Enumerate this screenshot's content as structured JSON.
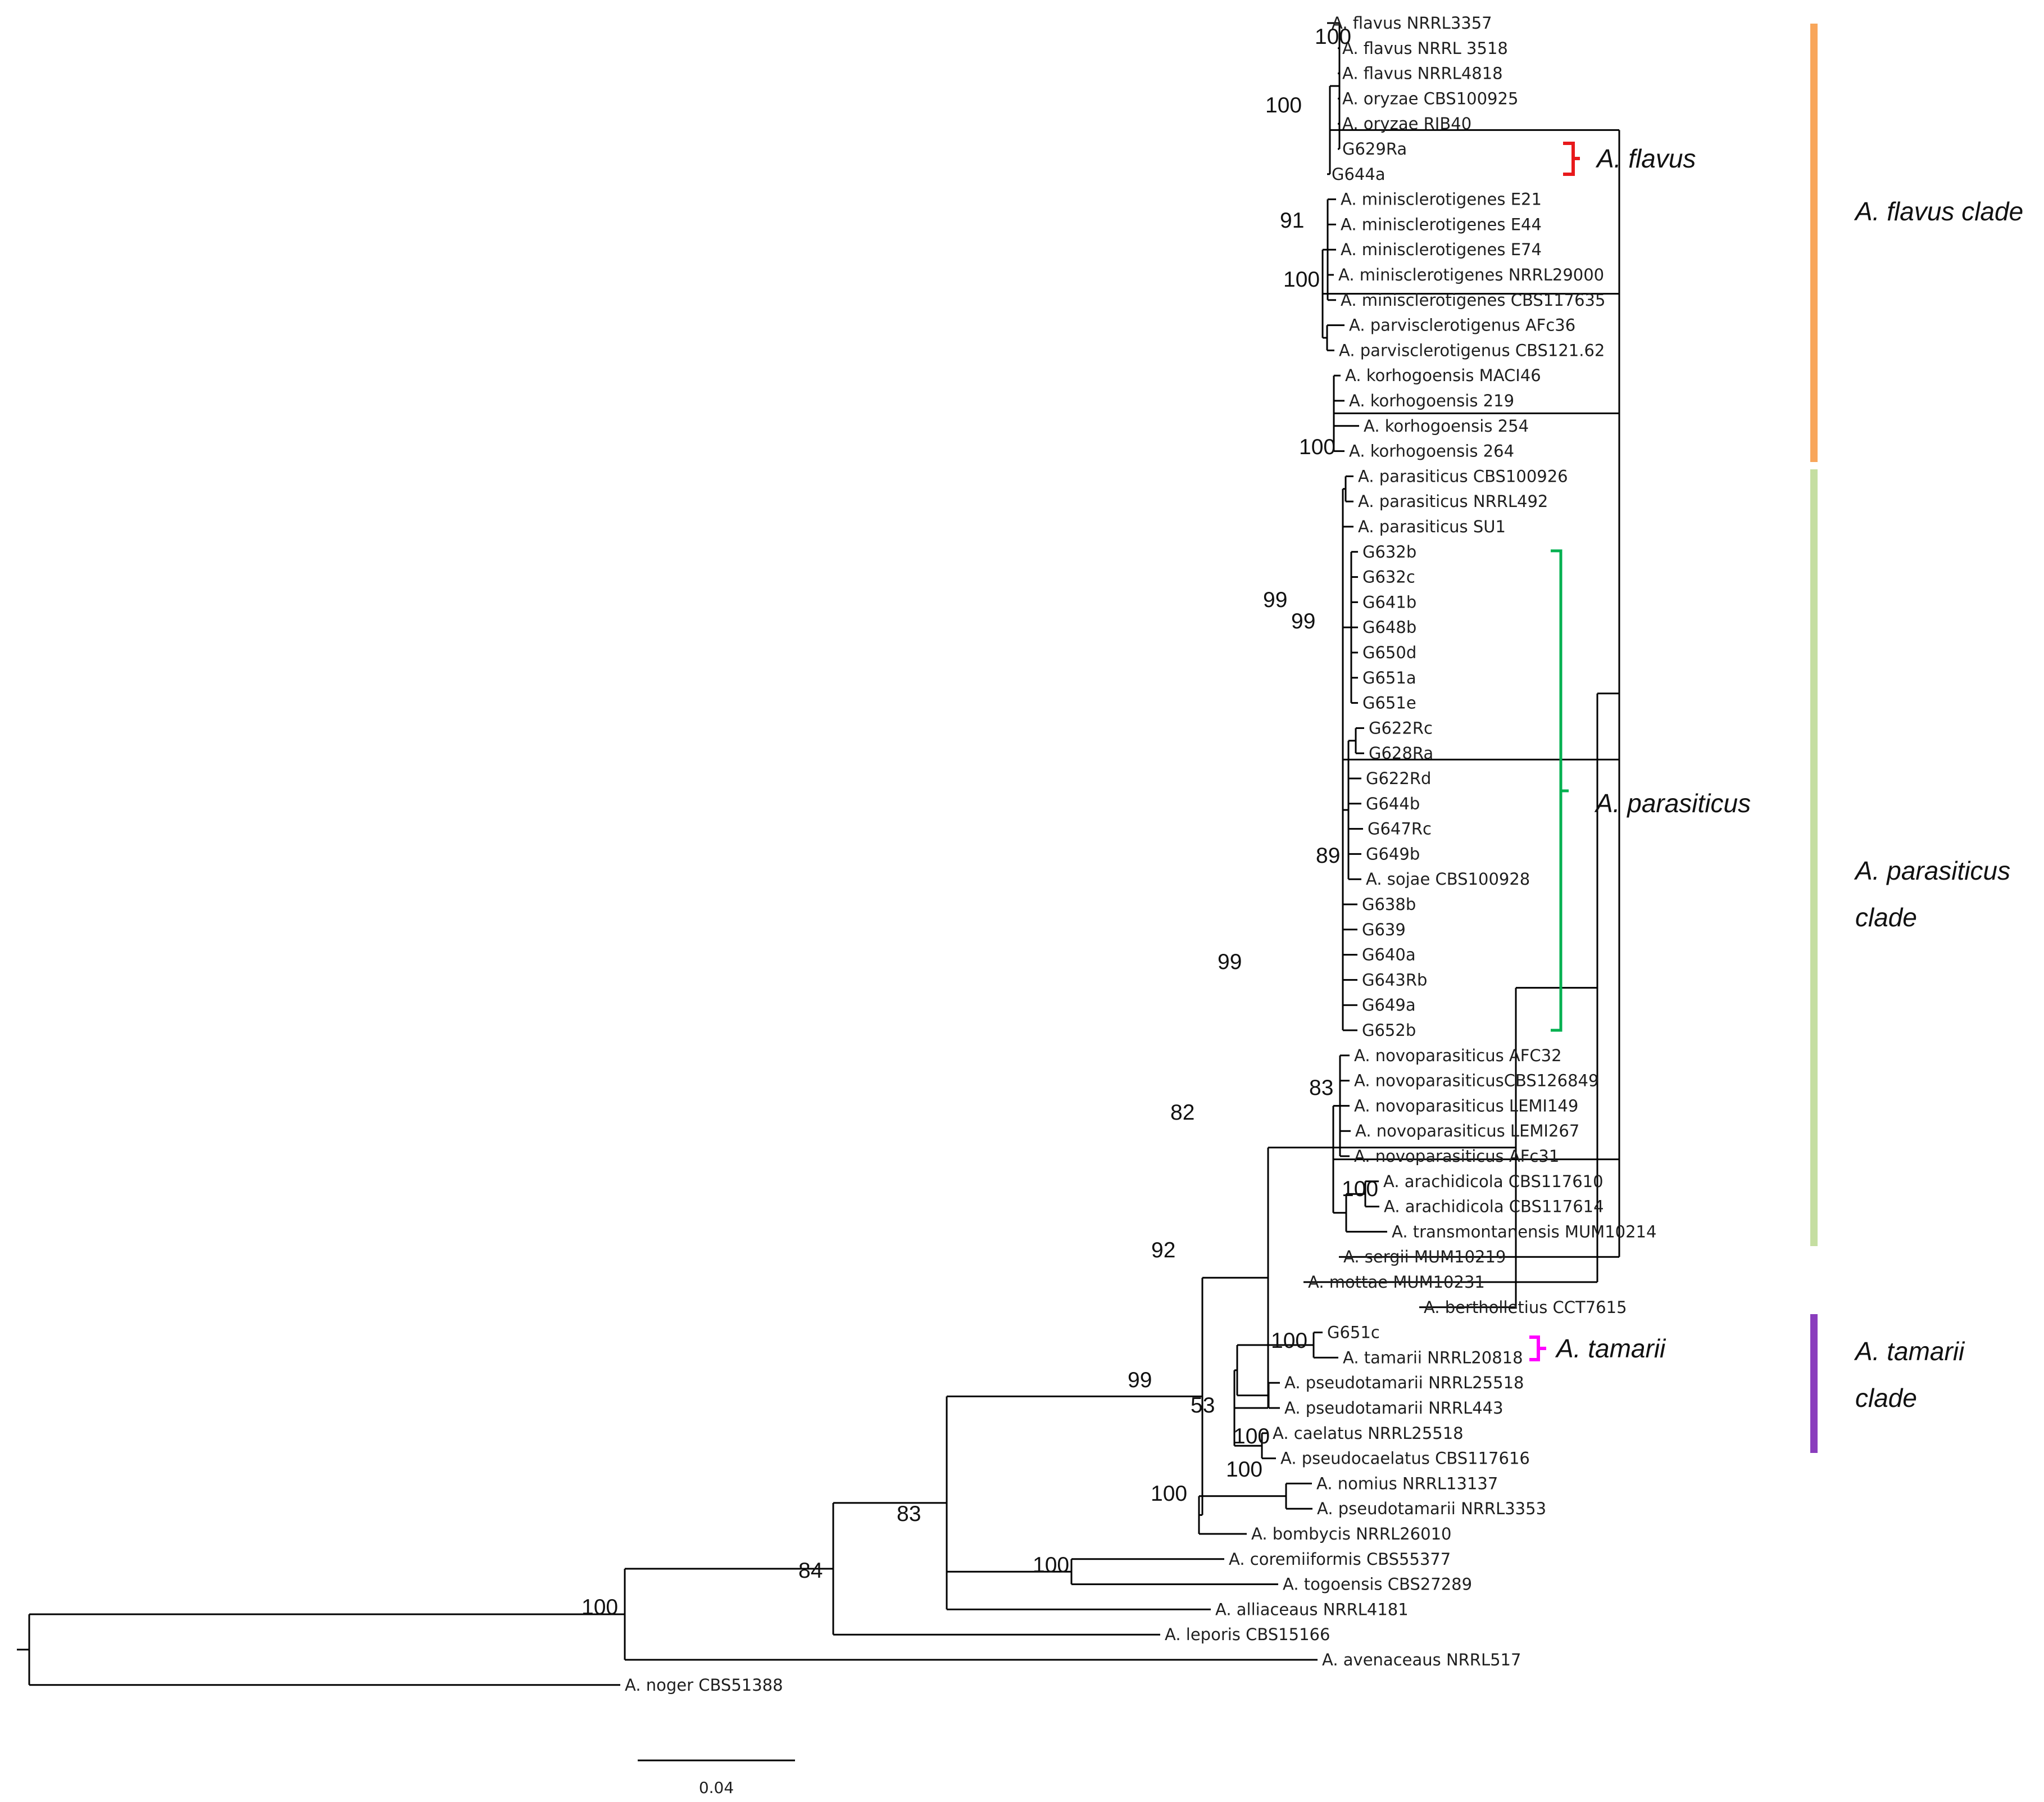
{
  "tree": {
    "leaves": [
      "A. flavus NRRL3357",
      "A. flavus NRRL 3518",
      "A. flavus NRRL4818",
      "A. oryzae CBS100925",
      "A. oryzae RIB40",
      "G629Ra",
      "G644a",
      "A. minisclerotigenes E21",
      "A. minisclerotigenes E44",
      "A. minisclerotigenes E74",
      "A. minisclerotigenes NRRL29000",
      "A. minisclerotigenes CBS117635",
      "A. parvisclerotigenus AFc36",
      "A. parvisclerotigenus CBS121.62",
      "A. korhogoensis MACI46",
      "A. korhogoensis 219",
      "A. korhogoensis 254",
      "A. korhogoensis 264",
      "A. parasiticus CBS100926",
      "A. parasiticus NRRL492",
      "A. parasiticus SU1",
      "G632b",
      "G632c",
      "G641b",
      "G648b",
      "G650d",
      "G651a",
      "G651e",
      "G622Rc",
      "G628Ra",
      "G622Rd",
      "G644b",
      "G647Rc",
      "G649b",
      "A. sojae CBS100928",
      "G638b",
      "G639",
      "G640a",
      "G643Rb",
      "G649a",
      "G652b",
      "A. novoparasiticus AFC32",
      "A. novoparasiticusCBS126849",
      "A. novoparasiticus LEMI149",
      "A. novoparasiticus LEMI267",
      "A. novoparasiticus AFc31",
      "A. arachidicola CBS117610",
      "A. arachidicola CBS117614",
      "A. transmontanensis MUM10214",
      "A. sergii MUM10219",
      "A. mottae MUM10231",
      "A. bertholletius CCT7615",
      "G651c",
      "A. tamarii NRRL20818",
      "A. pseudotamarii NRRL25518",
      "A. pseudotamarii NRRL443",
      "A. caelatus NRRL25518",
      "A. pseudocaelatus CBS117616",
      "A. nomius NRRL13137",
      "A. pseudotamarii NRRL3353",
      "A. bombycis NRRL26010",
      "A. coremiiformis CBS55377",
      "A. togoensis CBS27289",
      "A. alliaceaus NRRL4181",
      "A. leporis CBS15166",
      "A. avenaceaus NRRL517",
      "A. noger CBS51388"
    ],
    "bootstrap": [
      "100",
      "100",
      "91",
      "100",
      "100",
      "99",
      "99",
      "89",
      "83",
      "100",
      "99",
      "82",
      "92",
      "100",
      "53",
      "100",
      "100",
      "100",
      "99",
      "83",
      "100",
      "84",
      "100"
    ]
  },
  "annotations": {
    "species": [
      {
        "label": "A. flavus",
        "color": "#e8191b"
      },
      {
        "label": "A. parasiticus",
        "color": "#00b050"
      },
      {
        "label": "A. tamarii",
        "color": "#ff00ff"
      }
    ],
    "clades": [
      {
        "line1": "A. flavus clade",
        "line2": "",
        "color": "#f8a65b"
      },
      {
        "line1": "A. parasiticus",
        "line2": "clade",
        "color": "#c5dea1"
      },
      {
        "line1": "A. tamarii",
        "line2": "clade",
        "color": "#8a3dbd"
      }
    ]
  },
  "scale_bar": {
    "label": "0.04",
    "value": 0.04
  }
}
